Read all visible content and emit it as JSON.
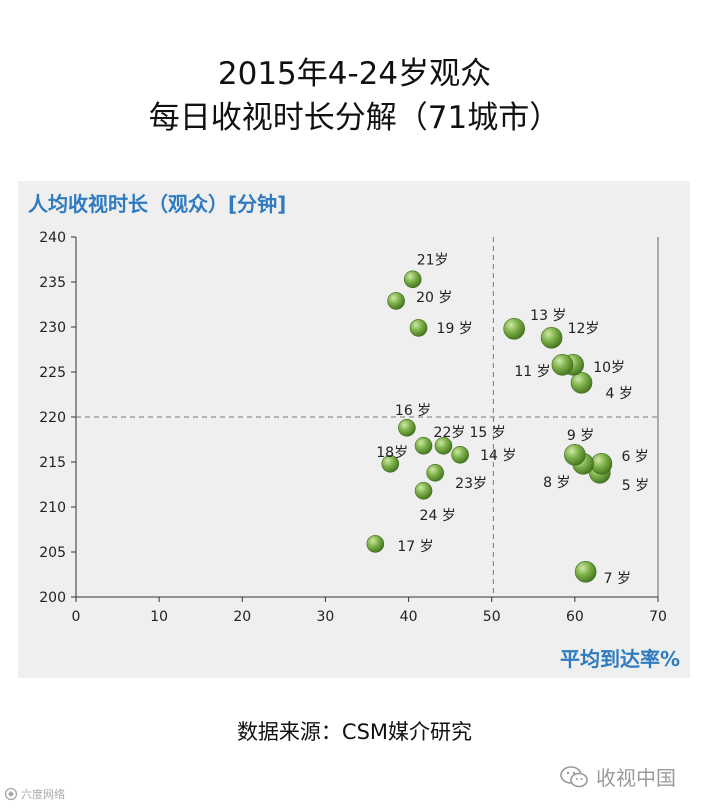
{
  "title_line1": "2015年4-24岁观众",
  "title_line2": "每日收视时长分解（71城市）",
  "source": "数据来源：CSM媒介研究",
  "watermark": "收视中国",
  "corner_mark": "六度网络",
  "colors": {
    "accent": "#2f7bbf",
    "ball_light": "#cfe8a8",
    "ball_mid": "#7fb24a",
    "ball_dark": "#3f6e1c"
  },
  "chart_data": {
    "type": "scatter",
    "ylabel": "人均收视时长（观众）[分钟]",
    "xlabel": "平均到达率%",
    "xlim": [
      0,
      70
    ],
    "ylim": [
      200,
      240
    ],
    "xticks": [
      0,
      10,
      20,
      30,
      40,
      50,
      60,
      70
    ],
    "yticks": [
      200,
      205,
      210,
      215,
      220,
      225,
      230,
      235,
      240
    ],
    "ref_x": 50.2,
    "ref_y": 220,
    "grid": false,
    "points": [
      {
        "label": "4 岁",
        "x": 60.8,
        "y": 223.8
      },
      {
        "label": "5 岁",
        "x": 63.0,
        "y": 213.8
      },
      {
        "label": "6 岁",
        "x": 63.2,
        "y": 214.8
      },
      {
        "label": "7 岁",
        "x": 61.3,
        "y": 202.8
      },
      {
        "label": "8 岁",
        "x": 61.0,
        "y": 214.8
      },
      {
        "label": "9 岁",
        "x": 60.0,
        "y": 215.8
      },
      {
        "label": "10岁",
        "x": 59.8,
        "y": 225.8
      },
      {
        "label": "11 岁",
        "x": 58.5,
        "y": 225.8
      },
      {
        "label": "12岁",
        "x": 57.2,
        "y": 228.8
      },
      {
        "label": "13 岁",
        "x": 52.7,
        "y": 229.8
      },
      {
        "label": "14 岁",
        "x": 46.2,
        "y": 215.8
      },
      {
        "label": "15 岁",
        "x": 44.2,
        "y": 216.8
      },
      {
        "label": "16 岁",
        "x": 39.8,
        "y": 218.8
      },
      {
        "label": "17 岁",
        "x": 36.0,
        "y": 205.9
      },
      {
        "label": "18岁",
        "x": 37.8,
        "y": 214.8
      },
      {
        "label": "19 岁",
        "x": 41.2,
        "y": 229.9
      },
      {
        "label": "20 岁",
        "x": 38.5,
        "y": 232.9
      },
      {
        "label": "21岁",
        "x": 40.5,
        "y": 235.3
      },
      {
        "label": "22岁",
        "x": 41.8,
        "y": 216.8
      },
      {
        "label": "23岁",
        "x": 43.2,
        "y": 213.8
      },
      {
        "label": "24 岁",
        "x": 41.8,
        "y": 211.8
      }
    ]
  }
}
